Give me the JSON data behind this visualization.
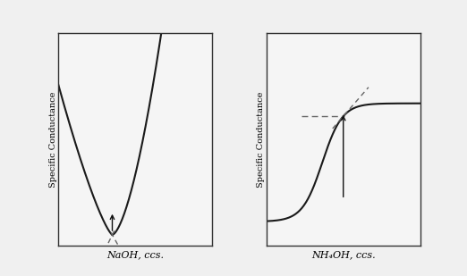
{
  "xlabel_left": "NaOH, ccs.",
  "xlabel_right": "NH₄OH, ccs.",
  "ylabel": "Specific Conductance",
  "bg_color": "#f5f5f5",
  "curve_color": "#1a1a1a",
  "dashed_color": "#666666",
  "arrow_color": "#111111",
  "font_size_label": 8,
  "font_size_ylabel": 7
}
